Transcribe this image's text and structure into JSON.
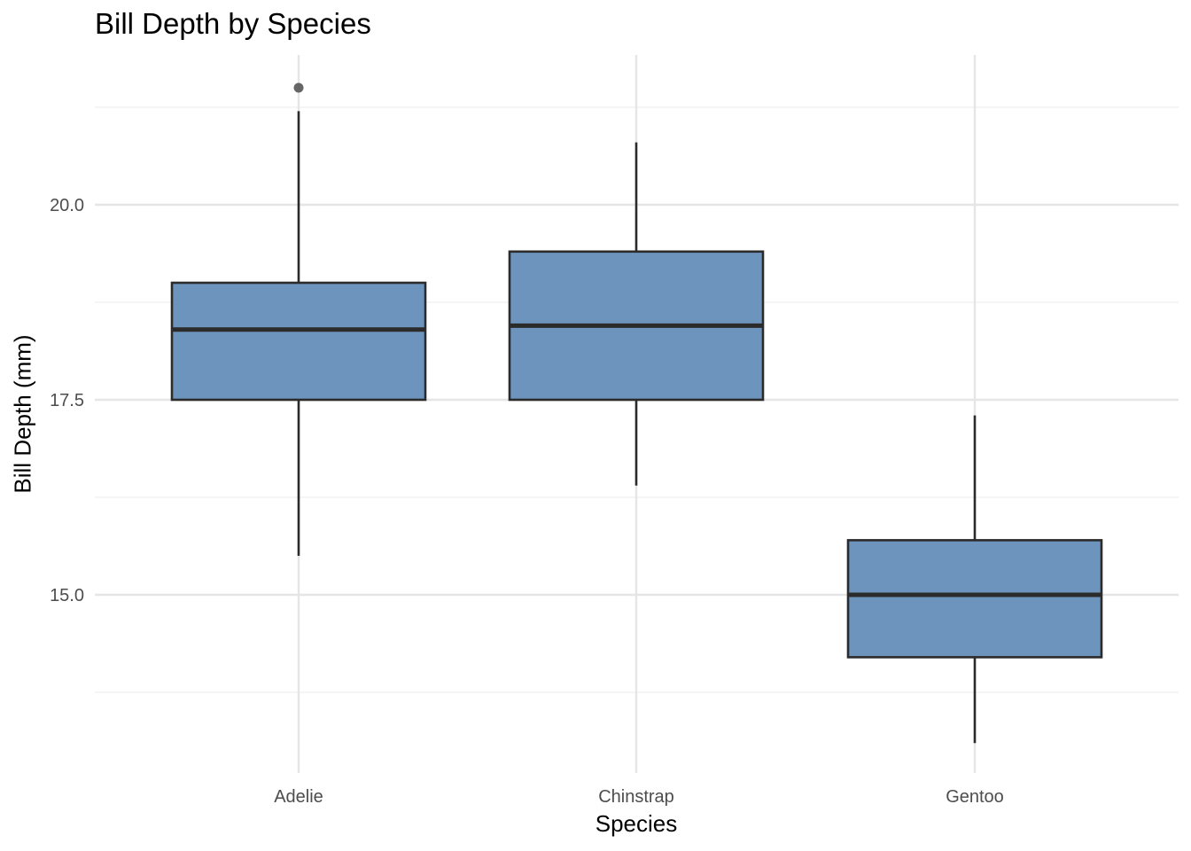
{
  "chart_data": {
    "type": "box",
    "title": "Bill Depth by Species",
    "xlabel": "Species",
    "ylabel": "Bill Depth (mm)",
    "categories": [
      "Adelie",
      "Chinstrap",
      "Gentoo"
    ],
    "ylim": [
      12.7,
      21.9
    ],
    "yticks": [
      15.0,
      17.5,
      20.0
    ],
    "ytick_labels": [
      "15.0",
      "17.5",
      "20.0"
    ],
    "grid": true,
    "legend": "none",
    "boxes": [
      {
        "category": "Adelie",
        "whisker_low": 15.5,
        "q1": 17.5,
        "median": 18.4,
        "q3": 19.0,
        "whisker_high": 21.2,
        "outliers": [
          21.5
        ]
      },
      {
        "category": "Chinstrap",
        "whisker_low": 16.4,
        "q1": 17.5,
        "median": 18.45,
        "q3": 19.4,
        "whisker_high": 20.8,
        "outliers": []
      },
      {
        "category": "Gentoo",
        "whisker_low": 13.1,
        "q1": 14.2,
        "median": 15.0,
        "q3": 15.7,
        "whisker_high": 17.3,
        "outliers": []
      }
    ]
  },
  "colors": {
    "box_fill": "#6c94bd",
    "box_stroke": "#2b2b2b",
    "grid_major": "#e5e5e5",
    "grid_minor": "#efefef",
    "outlier": "#555555"
  }
}
